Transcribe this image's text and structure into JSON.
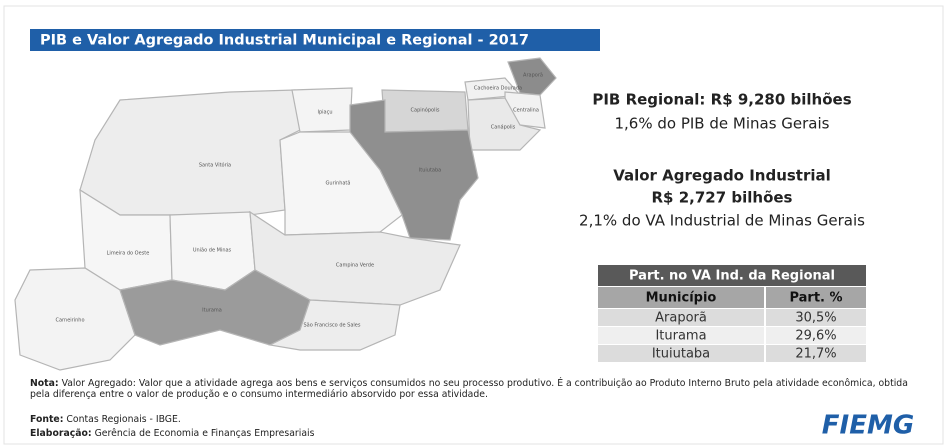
{
  "title": "PIB e Valor Agregado Industrial Municipal e Regional - 2017",
  "map": {
    "municipalities": [
      "Araporã",
      "Cachoeira Dourada",
      "Centralina",
      "Capinópolis",
      "Canápolis",
      "Ipiaçu",
      "Ituiutaba",
      "Santa Vitória",
      "Gurinhatã",
      "Limeira do Oeste",
      "União de Minas",
      "Campina Verde",
      "Carneirinho",
      "Iturama",
      "São Francisco de Sales"
    ]
  },
  "pib": {
    "heading": "PIB Regional: R$ 9,280 bilhões",
    "share": "1,6% do PIB de Minas Gerais"
  },
  "va": {
    "heading": "Valor Agregado Industrial",
    "amount": "R$ 2,727 bilhões",
    "share": "2,1% do VA Industrial de Minas Gerais"
  },
  "table": {
    "title": "Part. no VA Ind. da Regional",
    "columns": [
      "Município",
      "Part. %"
    ],
    "rows": [
      [
        "Araporã",
        "30,5%"
      ],
      [
        "Iturama",
        "29,6%"
      ],
      [
        "Ituiutaba",
        "21,7%"
      ]
    ]
  },
  "note": {
    "label": "Nota:",
    "text": "Valor Agregado: Valor que a atividade agrega aos bens e serviços consumidos no seu processo produtivo. É a contribuição ao Produto Interno Bruto pela atividade econômica, obtida pela diferença entre o valor de produção e o consumo intermediário absorvido por essa atividade."
  },
  "source": {
    "label": "Fonte:",
    "text": "Contas Regionais - IBGE."
  },
  "credits": {
    "label": "Elaboração:",
    "text": "Gerência de Economia e Finanças Empresariais"
  },
  "logo": "FIEMG"
}
